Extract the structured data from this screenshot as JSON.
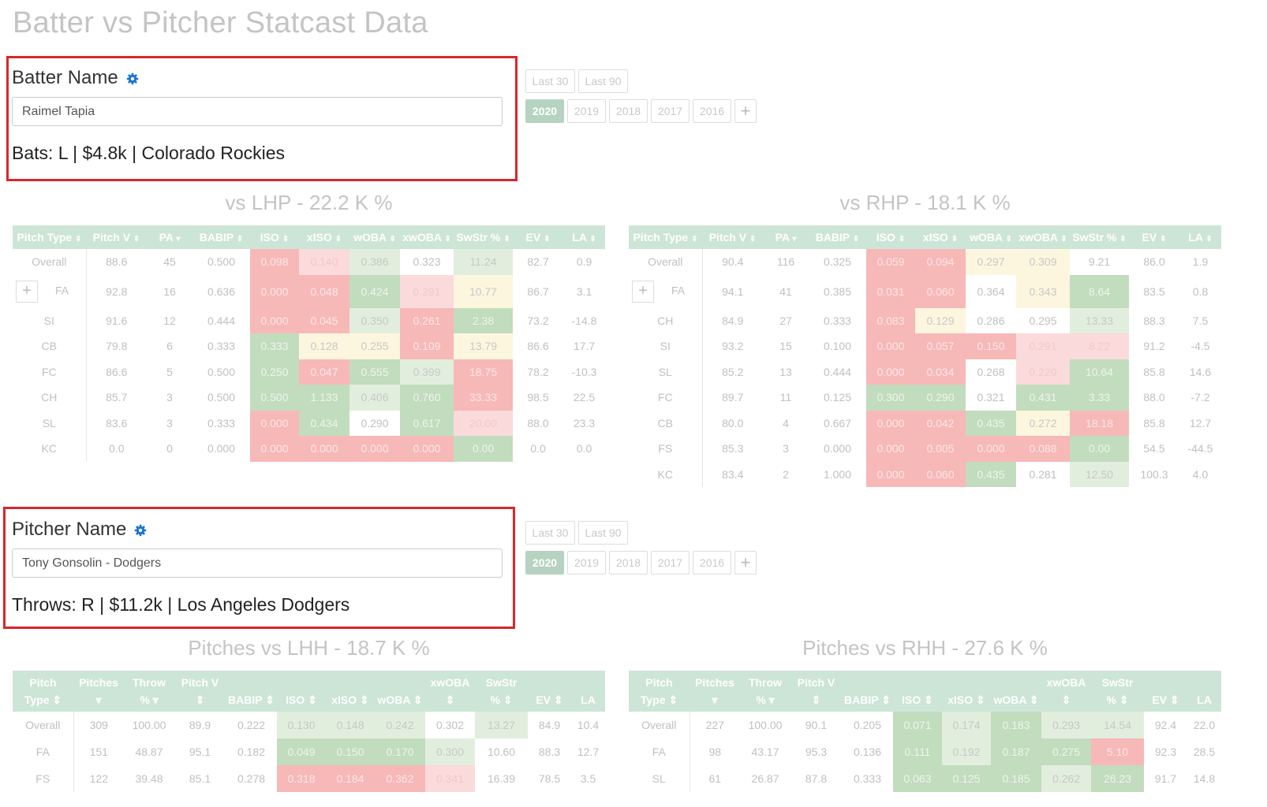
{
  "page_title": "Batter vs Pitcher Statcast Data",
  "batter": {
    "label": "Batter Name",
    "input_value": "Raimel Tapia",
    "info": "Bats: L | $4.8k | Colorado Rockies"
  },
  "pitcher": {
    "label": "Pitcher Name",
    "input_value": "Tony Gonsolin - Dodgers",
    "info": "Throws: R | $11.2k | Los Angeles Dodgers"
  },
  "range_buttons": [
    "Last 30",
    "Last 90"
  ],
  "year_buttons": [
    "2020",
    "2019",
    "2018",
    "2017",
    "2016"
  ],
  "active_year": "2020",
  "plus_label": "+",
  "colors": {
    "highlight_red": "#d9262c",
    "header_green": "#cde5d6",
    "active_green": "#b5d3c0"
  },
  "batter_columns": [
    {
      "label": "Pitch Type",
      "sort": "⇕"
    },
    {
      "label": "Pitch V",
      "sort": "⇕"
    },
    {
      "label": "PA",
      "sort": "▾"
    },
    {
      "label": "BABIP",
      "sort": "⇕"
    },
    {
      "label": "ISO",
      "sort": "⇕"
    },
    {
      "label": "xISO",
      "sort": "⇕"
    },
    {
      "label": "wOBA",
      "sort": "⇕"
    },
    {
      "label": "xwOBA",
      "sort": "⇕"
    },
    {
      "label": "SwStr %",
      "sort": "⇕"
    },
    {
      "label": "EV",
      "sort": "⇕"
    },
    {
      "label": "LA",
      "sort": "⇕"
    }
  ],
  "pitcher_columns": [
    {
      "top": "Pitch",
      "bottom": "Type ⇕"
    },
    {
      "top": "Pitches",
      "bottom": "▾"
    },
    {
      "top": "Throw",
      "bottom": "% ▾"
    },
    {
      "top": "Pitch V",
      "bottom": "⇕"
    },
    {
      "top": "",
      "bottom": "BABIP ⇕"
    },
    {
      "top": "",
      "bottom": "ISO ⇕"
    },
    {
      "top": "",
      "bottom": "xISO ⇕"
    },
    {
      "top": "",
      "bottom": "wOBA ⇕"
    },
    {
      "top": "xwOBA",
      "bottom": "⇕"
    },
    {
      "top": "SwStr",
      "bottom": "% ⇕"
    },
    {
      "top": "",
      "bottom": "EV ⇕"
    },
    {
      "top": "",
      "bottom": "LA"
    }
  ],
  "vs_lhp": {
    "title": "vs LHP - 22.2 K %",
    "rows": [
      {
        "expand": false,
        "cells": [
          "Overall",
          "88.6",
          "45",
          "0.500",
          "0.098",
          "0.140",
          "0.386",
          "0.323",
          "11.24",
          "82.7",
          "0.9"
        ],
        "colors": [
          "",
          "",
          "",
          "",
          "r1",
          "r2",
          "g2",
          "",
          "g2",
          "",
          ""
        ]
      },
      {
        "expand": true,
        "cells": [
          "FA",
          "92.8",
          "16",
          "0.636",
          "0.000",
          "0.048",
          "0.424",
          "0.291",
          "10.77",
          "86.7",
          "3.1"
        ],
        "colors": [
          "",
          "",
          "",
          "",
          "r1",
          "r1",
          "g1",
          "r2",
          "y",
          "",
          ""
        ]
      },
      {
        "expand": false,
        "cells": [
          "SI",
          "91.6",
          "12",
          "0.444",
          "0.000",
          "0.045",
          "0.350",
          "0.261",
          "2.38",
          "73.2",
          "-14.8"
        ],
        "colors": [
          "",
          "",
          "",
          "",
          "r1",
          "r1",
          "g2",
          "r1",
          "g1",
          "",
          ""
        ]
      },
      {
        "expand": false,
        "cells": [
          "CB",
          "79.8",
          "6",
          "0.333",
          "0.333",
          "0.128",
          "0.255",
          "0.109",
          "13.79",
          "86.6",
          "17.7"
        ],
        "colors": [
          "",
          "",
          "",
          "",
          "g1",
          "y",
          "y",
          "r1",
          "y",
          "",
          ""
        ]
      },
      {
        "expand": false,
        "cells": [
          "FC",
          "86.6",
          "5",
          "0.500",
          "0.250",
          "0.047",
          "0.555",
          "0.399",
          "18.75",
          "78.2",
          "-10.3"
        ],
        "colors": [
          "",
          "",
          "",
          "",
          "g1",
          "r1",
          "g1",
          "g2",
          "r1",
          "",
          ""
        ]
      },
      {
        "expand": false,
        "cells": [
          "CH",
          "85.7",
          "3",
          "0.500",
          "0.500",
          "1.133",
          "0.406",
          "0.760",
          "33.33",
          "98.5",
          "22.5"
        ],
        "colors": [
          "",
          "",
          "",
          "",
          "g1",
          "g1",
          "g2",
          "g1",
          "r1",
          "",
          ""
        ]
      },
      {
        "expand": false,
        "cells": [
          "SL",
          "83.6",
          "3",
          "0.333",
          "0.000",
          "0.434",
          "0.290",
          "0.617",
          "20.00",
          "88.0",
          "23.3"
        ],
        "colors": [
          "",
          "",
          "",
          "",
          "r1",
          "g1",
          "",
          "g1",
          "r2",
          "",
          ""
        ]
      },
      {
        "expand": false,
        "cells": [
          "KC",
          "0.0",
          "0",
          "0.000",
          "0.000",
          "0.000",
          "0.000",
          "0.000",
          "0.00",
          "0.0",
          "0.0"
        ],
        "colors": [
          "",
          "",
          "",
          "",
          "r1",
          "r1",
          "r1",
          "r1",
          "g1",
          "",
          ""
        ]
      }
    ]
  },
  "vs_rhp": {
    "title": "vs RHP - 18.1 K %",
    "rows": [
      {
        "expand": false,
        "cells": [
          "Overall",
          "90.4",
          "116",
          "0.325",
          "0.059",
          "0.094",
          "0.297",
          "0.309",
          "9.21",
          "86.0",
          "1.9"
        ],
        "colors": [
          "",
          "",
          "",
          "",
          "r1",
          "r1",
          "y",
          "y",
          "",
          "",
          ""
        ]
      },
      {
        "expand": true,
        "cells": [
          "FA",
          "94.1",
          "41",
          "0.385",
          "0.031",
          "0.060",
          "0.364",
          "0.343",
          "8.64",
          "83.5",
          "0.8"
        ],
        "colors": [
          "",
          "",
          "",
          "",
          "r1",
          "r1",
          "",
          "y",
          "g1",
          "",
          ""
        ]
      },
      {
        "expand": false,
        "cells": [
          "CH",
          "84.9",
          "27",
          "0.333",
          "0.083",
          "0.129",
          "0.286",
          "0.295",
          "13.33",
          "88.3",
          "7.5"
        ],
        "colors": [
          "",
          "",
          "",
          "",
          "r1",
          "y",
          "",
          "",
          "g2",
          "",
          ""
        ]
      },
      {
        "expand": false,
        "cells": [
          "SI",
          "93.2",
          "15",
          "0.100",
          "0.000",
          "0.057",
          "0.150",
          "0.291",
          "8.22",
          "91.2",
          "-4.5"
        ],
        "colors": [
          "",
          "",
          "",
          "",
          "r1",
          "r1",
          "r1",
          "r2",
          "r2",
          "",
          ""
        ]
      },
      {
        "expand": false,
        "cells": [
          "SL",
          "85.2",
          "13",
          "0.444",
          "0.000",
          "0.034",
          "0.268",
          "0.220",
          "10.64",
          "85.8",
          "14.6"
        ],
        "colors": [
          "",
          "",
          "",
          "",
          "r1",
          "r1",
          "",
          "r2",
          "g1",
          "",
          ""
        ]
      },
      {
        "expand": false,
        "cells": [
          "FC",
          "89.7",
          "11",
          "0.125",
          "0.300",
          "0.290",
          "0.321",
          "0.431",
          "3.33",
          "88.0",
          "-7.2"
        ],
        "colors": [
          "",
          "",
          "",
          "",
          "g1",
          "g1",
          "",
          "g1",
          "g1",
          "",
          ""
        ]
      },
      {
        "expand": false,
        "cells": [
          "CB",
          "80.0",
          "4",
          "0.667",
          "0.000",
          "0.042",
          "0.435",
          "0.272",
          "18.18",
          "85.8",
          "12.7"
        ],
        "colors": [
          "",
          "",
          "",
          "",
          "r1",
          "r1",
          "g1",
          "y",
          "r1",
          "",
          ""
        ]
      },
      {
        "expand": false,
        "cells": [
          "FS",
          "85.3",
          "3",
          "0.000",
          "0.000",
          "0.005",
          "0.000",
          "0.088",
          "0.00",
          "54.5",
          "-44.5"
        ],
        "colors": [
          "",
          "",
          "",
          "",
          "r1",
          "r1",
          "r1",
          "r1",
          "g1",
          "",
          ""
        ]
      },
      {
        "expand": false,
        "cells": [
          "KC",
          "83.4",
          "2",
          "1.000",
          "0.000",
          "0.060",
          "0.435",
          "0.281",
          "12.50",
          "100.3",
          "4.0"
        ],
        "colors": [
          "",
          "",
          "",
          "",
          "r1",
          "r1",
          "g1",
          "",
          "g2",
          "",
          ""
        ]
      }
    ]
  },
  "vs_lhh": {
    "title": "Pitches vs LHH - 18.7 K %",
    "rows": [
      {
        "cells": [
          "Overall",
          "309",
          "100.00",
          "89.9",
          "0.222",
          "0.130",
          "0.148",
          "0.242",
          "0.302",
          "13.27",
          "84.9",
          "10.4"
        ],
        "colors": [
          "",
          "",
          "",
          "",
          "",
          "g2",
          "g2",
          "g2",
          "",
          "g2",
          "",
          ""
        ]
      },
      {
        "cells": [
          "FA",
          "151",
          "48.87",
          "95.1",
          "0.182",
          "0.049",
          "0.150",
          "0.170",
          "0.300",
          "10.60",
          "88.3",
          "12.7"
        ],
        "colors": [
          "",
          "",
          "",
          "",
          "",
          "g1",
          "g1",
          "g1",
          "g2",
          "",
          "",
          ""
        ]
      },
      {
        "cells": [
          "FS",
          "122",
          "39.48",
          "85.1",
          "0.278",
          "0.318",
          "0.184",
          "0.362",
          "0.341",
          "16.39",
          "78.5",
          "3.5"
        ],
        "colors": [
          "",
          "",
          "",
          "",
          "",
          "r1",
          "r1",
          "r1",
          "r2",
          "",
          "",
          ""
        ]
      }
    ]
  },
  "vs_rhh": {
    "title": "Pitches vs RHH - 27.6 K %",
    "rows": [
      {
        "cells": [
          "Overall",
          "227",
          "100.00",
          "90.1",
          "0.205",
          "0.071",
          "0.174",
          "0.183",
          "0.293",
          "14.54",
          "92.4",
          "22.0"
        ],
        "colors": [
          "",
          "",
          "",
          "",
          "",
          "g1",
          "g2",
          "g1",
          "g2",
          "g2",
          "",
          ""
        ]
      },
      {
        "cells": [
          "FA",
          "98",
          "43.17",
          "95.3",
          "0.136",
          "0.111",
          "0.192",
          "0.187",
          "0.275",
          "5.10",
          "92.3",
          "28.5"
        ],
        "colors": [
          "",
          "",
          "",
          "",
          "",
          "g1",
          "g2",
          "g1",
          "g1",
          "r1",
          "",
          ""
        ]
      },
      {
        "cells": [
          "SL",
          "61",
          "26.87",
          "87.8",
          "0.333",
          "0.063",
          "0.125",
          "0.185",
          "0.262",
          "26.23",
          "91.7",
          "14.8"
        ],
        "colors": [
          "",
          "",
          "",
          "",
          "",
          "g1",
          "g1",
          "g1",
          "g2",
          "g1",
          "",
          ""
        ]
      }
    ]
  }
}
